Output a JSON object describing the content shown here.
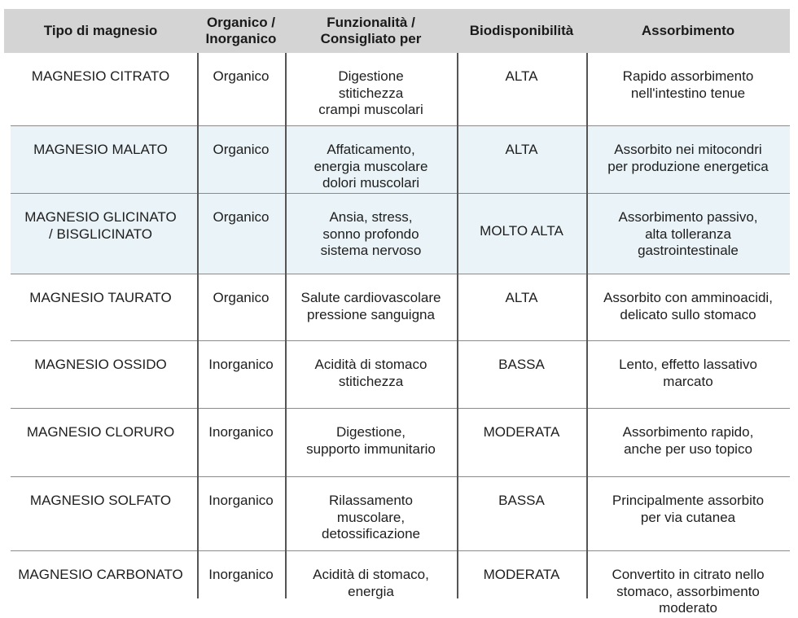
{
  "table": {
    "headers": [
      "Tipo di magnesio",
      "Organico /\nInorganico",
      "Funzionalità /\nConsigliato per",
      "Biodisponibilità",
      "Assorbimento"
    ],
    "rows": [
      [
        "MAGNESIO CITRATO",
        "Organico",
        "Digestione\nstitichezza\ncrampi muscolari",
        "ALTA",
        "Rapido assorbimento\nnell'intestino tenue"
      ],
      [
        "MAGNESIO MALATO",
        "Organico",
        "Affaticamento,\nenergia muscolare\ndolori muscolari",
        "ALTA",
        "Assorbito nei mitocondri\nper produzione energetica"
      ],
      [
        "MAGNESIO GLICINATO\n/ BISGLICINATO",
        "Organico",
        "Ansia, stress,\nsonno profondo\nsistema nervoso",
        "MOLTO ALTA",
        "Assorbimento passivo,\nalta tolleranza\ngastrointestinale"
      ],
      [
        "MAGNESIO TAURATO",
        "Organico",
        "Salute cardiovascolare\npressione sanguigna",
        "ALTA",
        "Assorbito con amminoacidi,\ndelicato sullo stomaco"
      ],
      [
        "MAGNESIO OSSIDO",
        "Inorganico",
        "Acidità di stomaco\nstitichezza",
        "BASSA",
        "Lento, effetto lassativo\nmarcato"
      ],
      [
        "MAGNESIO CLORURO",
        "Inorganico",
        "Digestione,\nsupporto immunitario",
        "MODERATA",
        "Assorbimento rapido,\nanche per uso topico"
      ],
      [
        "MAGNESIO SOLFATO",
        "Inorganico",
        "Rilassamento\nmuscolare,\ndetossificazione",
        "BASSA",
        "Principalmente assorbito\nper via cutanea"
      ],
      [
        "MAGNESIO CARBONATO",
        "Inorganico",
        "Acidità di stomaco,\nenergia",
        "MODERATA",
        "Convertito in citrato nello\nstomaco, assorbimento\nmoderato"
      ]
    ],
    "header_bg": "#d4d4d4",
    "alt_row_bg": "#eaf3f7"
  }
}
